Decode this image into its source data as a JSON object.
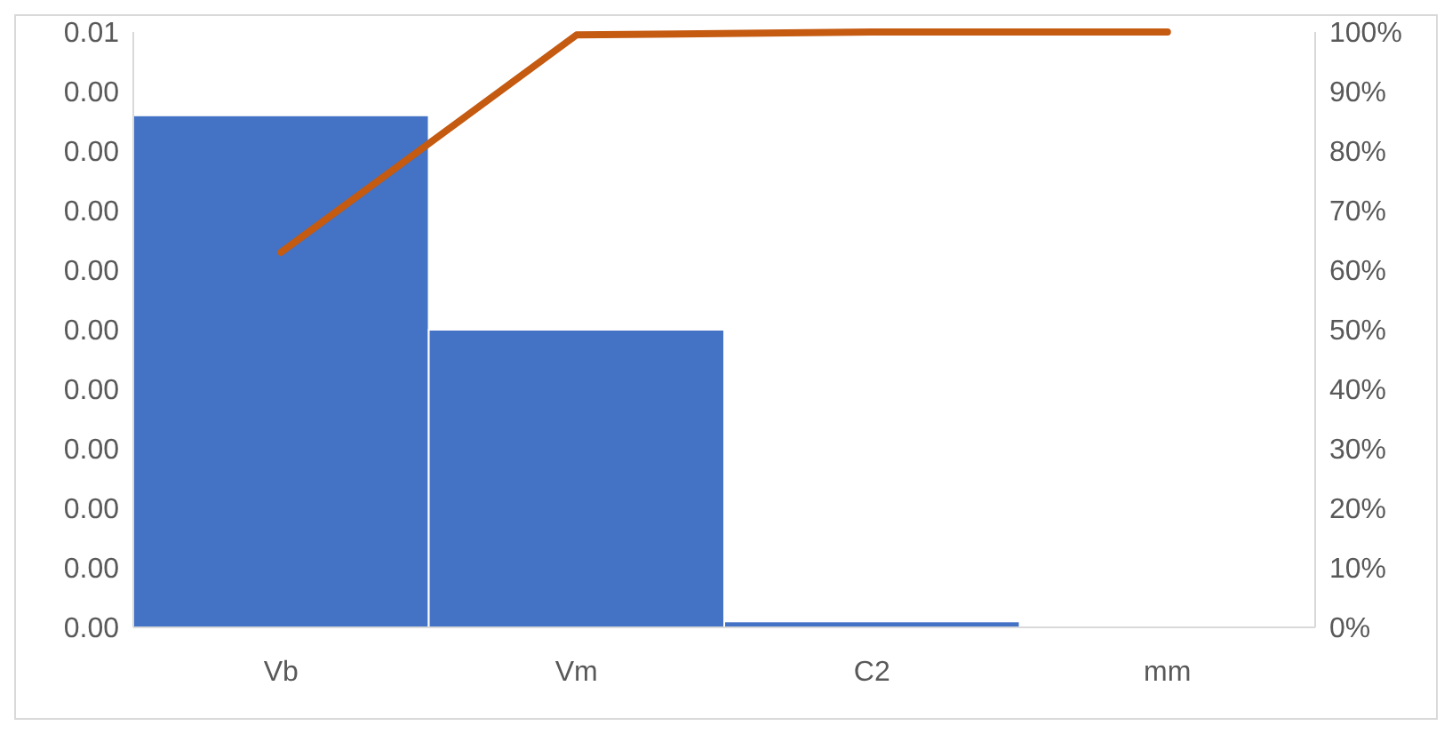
{
  "chart_data": {
    "type": "bar",
    "categories": [
      "Vb",
      "Vm",
      "C2",
      "mm"
    ],
    "series": [
      {
        "color": "#4472c4",
        "values": [
          0.0043,
          0.0025,
          5e-05,
          0
        ]
      },
      {
        "type": "line",
        "axis": "y2",
        "color": "#c55a11",
        "values": [
          63,
          99.5,
          100,
          100
        ]
      }
    ],
    "ylim": [
      0,
      0.005
    ],
    "yticks": [
      {
        "value": 0,
        "label": "0.00"
      },
      {
        "value": 0.0005,
        "label": "0.00"
      },
      {
        "value": 0.001,
        "label": "0.00"
      },
      {
        "value": 0.0015,
        "label": "0.00"
      },
      {
        "value": 0.002,
        "label": "0.00"
      },
      {
        "value": 0.0025,
        "label": "0.00"
      },
      {
        "value": 0.003,
        "label": "0.00"
      },
      {
        "value": 0.0035,
        "label": "0.00"
      },
      {
        "value": 0.004,
        "label": "0.00"
      },
      {
        "value": 0.0045,
        "label": "0.00"
      },
      {
        "value": 0.005,
        "label": "0.01"
      }
    ],
    "y2lim": [
      0,
      100
    ],
    "y2ticks": [
      {
        "value": 0,
        "label": "0%"
      },
      {
        "value": 10,
        "label": "10%"
      },
      {
        "value": 20,
        "label": "20%"
      },
      {
        "value": 30,
        "label": "30%"
      },
      {
        "value": 40,
        "label": "40%"
      },
      {
        "value": 50,
        "label": "50%"
      },
      {
        "value": 60,
        "label": "60%"
      },
      {
        "value": 70,
        "label": "70%"
      },
      {
        "value": 80,
        "label": "80%"
      },
      {
        "value": 90,
        "label": "90%"
      },
      {
        "value": 100,
        "label": "100%"
      }
    ]
  }
}
